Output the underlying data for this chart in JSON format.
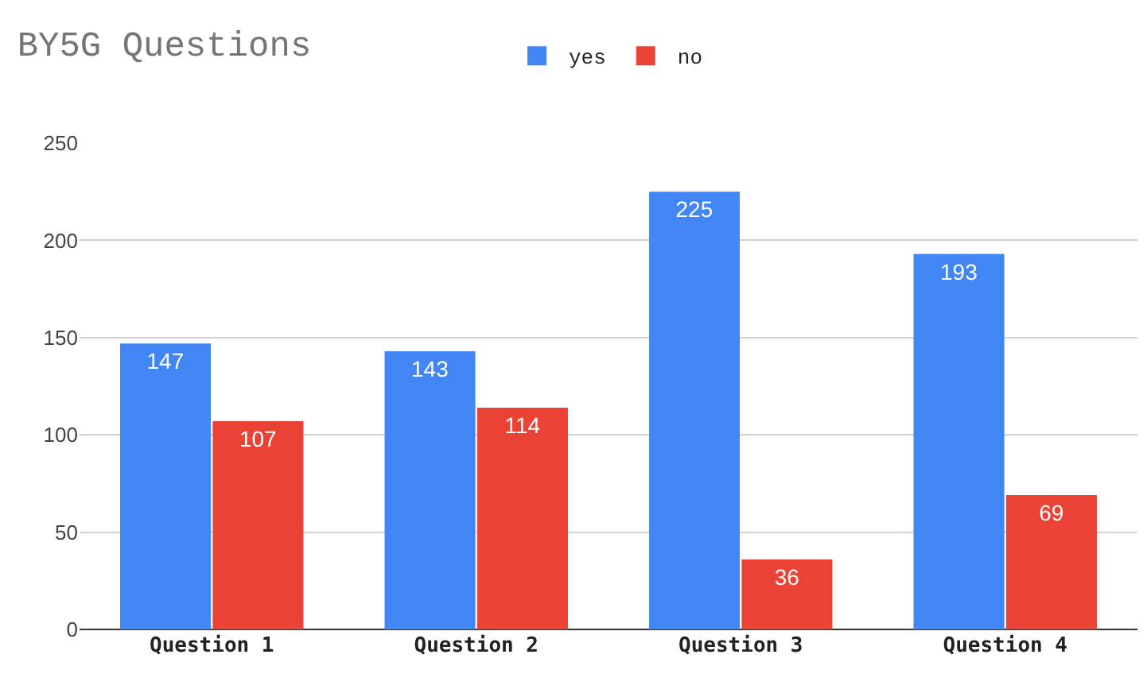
{
  "chart_data": {
    "type": "bar",
    "title": "BY5G Questions",
    "categories": [
      "Question 1",
      "Question 2",
      "Question 3",
      "Question 4"
    ],
    "series": [
      {
        "name": "yes",
        "color": "#4285f4",
        "values": [
          147,
          143,
          225,
          193
        ]
      },
      {
        "name": "no",
        "color": "#ea4335",
        "values": [
          107,
          114,
          36,
          69
        ]
      }
    ],
    "ylim": [
      0,
      250
    ],
    "yticks": [
      0,
      50,
      100,
      150,
      200,
      250
    ],
    "grid": "y",
    "legend": "top",
    "data_labels": true
  }
}
